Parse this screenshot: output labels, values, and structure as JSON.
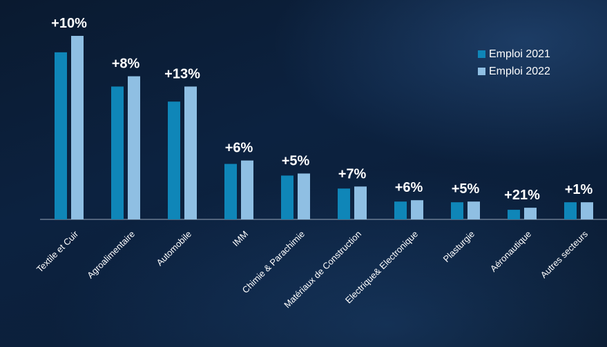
{
  "colors": {
    "series_2021": "#0f86b8",
    "series_2022": "#8fbfe3",
    "axis": "#9aa9bb"
  },
  "chart_data": {
    "type": "bar",
    "categories": [
      "Textile et Cuir",
      "Agroalimentaire",
      "Automobile",
      "IMM",
      "Chimie & Parachimie",
      "Matériaux de Construction",
      "Electrique& Electronique",
      "Plasturgie",
      "Aéronautique",
      "Autres secteurs"
    ],
    "series": [
      {
        "name": "Emploi 2021",
        "values": [
          244,
          194,
          172,
          81,
          64,
          45,
          26,
          25,
          14,
          25
        ]
      },
      {
        "name": "Emploi 2022",
        "values": [
          268,
          209,
          194,
          86,
          67,
          48,
          28,
          26,
          17,
          25
        ]
      }
    ],
    "data_labels": [
      "+10%",
      "+8%",
      "+13%",
      "+6%",
      "+5%",
      "+7%",
      "+6%",
      "+5%",
      "+21%",
      "+1%"
    ],
    "ylim": [
      0,
      270
    ],
    "grid": false,
    "legend_position": "top-right"
  }
}
